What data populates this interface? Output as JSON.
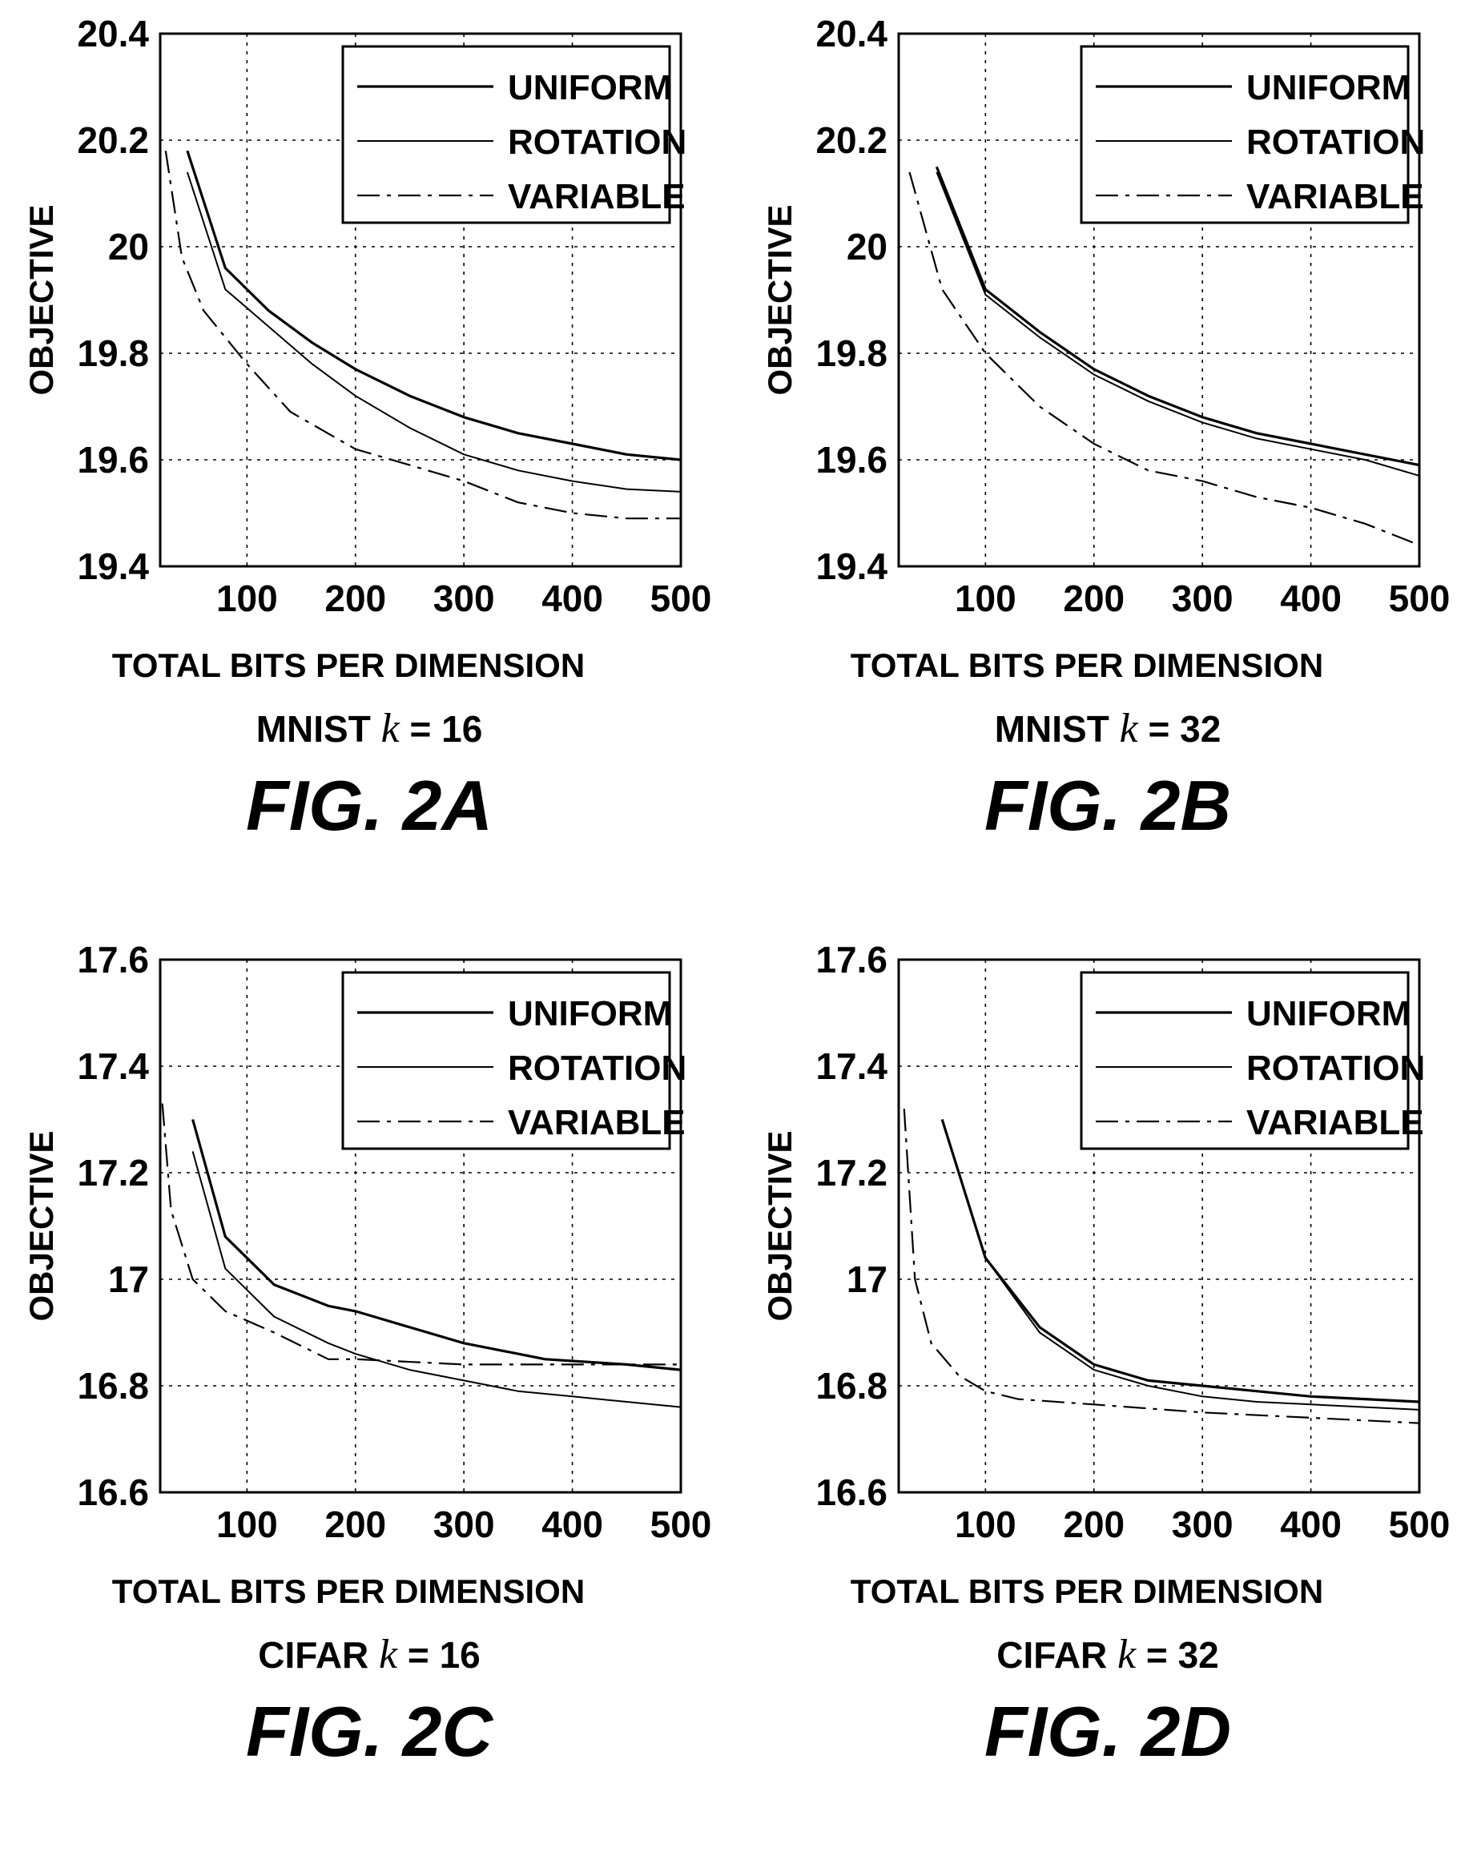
{
  "figures": [
    {
      "dataset": "MNIST",
      "k_symbol": "k",
      "k_eq": "= 16",
      "fig_label": "FIG. 2A"
    },
    {
      "dataset": "MNIST",
      "k_symbol": "k",
      "k_eq": "= 32",
      "fig_label": "FIG. 2B"
    },
    {
      "dataset": "CIFAR",
      "k_symbol": "k",
      "k_eq": "= 16",
      "fig_label": "FIG. 2C"
    },
    {
      "dataset": "CIFAR",
      "k_symbol": "k",
      "k_eq": "= 32",
      "fig_label": "FIG. 2D"
    }
  ],
  "chart_data": [
    {
      "type": "line",
      "xlabel": "TOTAL BITS PER DIMENSION",
      "ylabel": "OBJECTIVE",
      "xlim": [
        20,
        500
      ],
      "ylim": [
        19.4,
        20.4
      ],
      "xticks": [
        100,
        200,
        300,
        400,
        500
      ],
      "yticks": [
        19.4,
        19.6,
        19.8,
        20,
        20.2,
        20.4
      ],
      "ytick_labels": [
        "19.4",
        "19.6",
        "19.8",
        "20",
        "20.2",
        "20.4"
      ],
      "grid": true,
      "legend_position": "top-right",
      "series": [
        {
          "name": "UNIFORM",
          "dash": "solid",
          "width": 3.2,
          "x": [
            45,
            80,
            120,
            160,
            200,
            250,
            300,
            350,
            400,
            450,
            500
          ],
          "y": [
            20.18,
            19.96,
            19.88,
            19.82,
            19.77,
            19.72,
            19.68,
            19.65,
            19.63,
            19.61,
            19.6
          ]
        },
        {
          "name": "ROTATION",
          "dash": "solid",
          "width": 2.0,
          "x": [
            45,
            80,
            120,
            160,
            200,
            250,
            300,
            350,
            400,
            450,
            500
          ],
          "y": [
            20.14,
            19.92,
            19.85,
            19.78,
            19.72,
            19.66,
            19.61,
            19.58,
            19.56,
            19.545,
            19.54
          ]
        },
        {
          "name": "VARIABLE",
          "dash": "dashdot",
          "width": 2.2,
          "x": [
            25,
            40,
            60,
            100,
            140,
            200,
            250,
            300,
            350,
            400,
            450,
            500
          ],
          "y": [
            20.18,
            19.98,
            19.88,
            19.78,
            19.69,
            19.62,
            19.59,
            19.56,
            19.52,
            19.5,
            19.49,
            19.49
          ]
        }
      ]
    },
    {
      "type": "line",
      "xlabel": "TOTAL BITS PER DIMENSION",
      "ylabel": "OBJECTIVE",
      "xlim": [
        20,
        500
      ],
      "ylim": [
        19.4,
        20.4
      ],
      "xticks": [
        100,
        200,
        300,
        400,
        500
      ],
      "yticks": [
        19.4,
        19.6,
        19.8,
        20,
        20.2,
        20.4
      ],
      "ytick_labels": [
        "19.4",
        "19.6",
        "19.8",
        "20",
        "20.2",
        "20.4"
      ],
      "grid": true,
      "legend_position": "top-right",
      "series": [
        {
          "name": "UNIFORM",
          "dash": "solid",
          "width": 3.2,
          "x": [
            55,
            100,
            150,
            200,
            250,
            300,
            350,
            400,
            450,
            500
          ],
          "y": [
            20.15,
            19.92,
            19.84,
            19.77,
            19.72,
            19.68,
            19.65,
            19.63,
            19.61,
            19.59
          ]
        },
        {
          "name": "ROTATION",
          "dash": "solid",
          "width": 2.0,
          "x": [
            55,
            100,
            150,
            200,
            250,
            300,
            350,
            400,
            450,
            500
          ],
          "y": [
            20.14,
            19.91,
            19.83,
            19.76,
            19.71,
            19.67,
            19.64,
            19.62,
            19.6,
            19.57
          ]
        },
        {
          "name": "VARIABLE",
          "dash": "dashdot",
          "width": 2.2,
          "x": [
            30,
            60,
            100,
            150,
            200,
            250,
            300,
            350,
            400,
            450,
            500
          ],
          "y": [
            20.14,
            19.92,
            19.8,
            19.7,
            19.63,
            19.58,
            19.56,
            19.53,
            19.51,
            19.48,
            19.44
          ]
        }
      ]
    },
    {
      "type": "line",
      "xlabel": "TOTAL BITS PER DIMENSION",
      "ylabel": "OBJECTIVE",
      "xlim": [
        20,
        500
      ],
      "ylim": [
        16.6,
        17.6
      ],
      "xticks": [
        100,
        200,
        300,
        400,
        500
      ],
      "yticks": [
        16.6,
        16.8,
        17,
        17.2,
        17.4,
        17.6
      ],
      "ytick_labels": [
        "16.6",
        "16.8",
        "17",
        "17.2",
        "17.4",
        "17.6"
      ],
      "grid": true,
      "legend_position": "top-right",
      "series": [
        {
          "name": "UNIFORM",
          "dash": "solid",
          "width": 3.2,
          "x": [
            50,
            80,
            125,
            175,
            200,
            250,
            300,
            375,
            450,
            500
          ],
          "y": [
            17.3,
            17.08,
            16.99,
            16.95,
            16.94,
            16.91,
            16.88,
            16.85,
            16.84,
            16.83
          ]
        },
        {
          "name": "ROTATION",
          "dash": "solid",
          "width": 2.0,
          "x": [
            50,
            80,
            125,
            175,
            200,
            250,
            300,
            350,
            400,
            450,
            500
          ],
          "y": [
            17.24,
            17.02,
            16.93,
            16.88,
            16.86,
            16.83,
            16.81,
            16.79,
            16.78,
            16.77,
            16.76
          ]
        },
        {
          "name": "VARIABLE",
          "dash": "dashdot",
          "width": 2.2,
          "x": [
            22,
            30,
            50,
            80,
            125,
            175,
            200,
            300,
            400,
            500
          ],
          "y": [
            17.33,
            17.13,
            17.0,
            16.94,
            16.9,
            16.85,
            16.85,
            16.84,
            16.84,
            16.84
          ]
        }
      ]
    },
    {
      "type": "line",
      "xlabel": "TOTAL BITS PER DIMENSION",
      "ylabel": "OBJECTIVE",
      "xlim": [
        20,
        500
      ],
      "ylim": [
        16.6,
        17.6
      ],
      "xticks": [
        100,
        200,
        300,
        400,
        500
      ],
      "yticks": [
        16.6,
        16.8,
        17,
        17.2,
        17.4,
        17.6
      ],
      "ytick_labels": [
        "16.6",
        "16.8",
        "17",
        "17.2",
        "17.4",
        "17.6"
      ],
      "grid": true,
      "legend_position": "top-right",
      "series": [
        {
          "name": "UNIFORM",
          "dash": "solid",
          "width": 3.2,
          "x": [
            60,
            100,
            150,
            200,
            250,
            300,
            350,
            400,
            450,
            500
          ],
          "y": [
            17.3,
            17.04,
            16.91,
            16.84,
            16.81,
            16.8,
            16.79,
            16.78,
            16.775,
            16.77
          ]
        },
        {
          "name": "ROTATION",
          "dash": "solid",
          "width": 2.0,
          "x": [
            60,
            100,
            150,
            200,
            250,
            300,
            350,
            400,
            450,
            500
          ],
          "y": [
            17.3,
            17.04,
            16.9,
            16.83,
            16.8,
            16.78,
            16.77,
            16.765,
            16.76,
            16.755
          ]
        },
        {
          "name": "VARIABLE",
          "dash": "dashdot",
          "width": 2.2,
          "x": [
            25,
            35,
            50,
            75,
            100,
            130,
            200,
            300,
            400,
            500
          ],
          "y": [
            17.32,
            17.0,
            16.88,
            16.82,
            16.79,
            16.775,
            16.765,
            16.75,
            16.74,
            16.73
          ]
        }
      ]
    }
  ]
}
